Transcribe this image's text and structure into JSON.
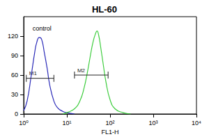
{
  "chart_data": {
    "type": "line",
    "title": "HL-60",
    "x_label": "FL1-H",
    "log": "x",
    "xlim": [
      1,
      10000
    ],
    "xticks": [
      {
        "value": 1,
        "label": "10⁰"
      },
      {
        "value": 10,
        "label": "10¹"
      },
      {
        "value": 100,
        "label": "10²"
      },
      {
        "value": 1000,
        "label": "10³"
      },
      {
        "value": 10000,
        "label": "10⁴"
      }
    ],
    "ylim": [
      0,
      150
    ],
    "yticks": [
      0,
      30,
      60,
      90,
      120
    ],
    "grid": false,
    "series": [
      {
        "color": "#2a2ab8",
        "x": [
          1,
          1.2,
          1.5,
          1.8,
          2,
          2.3,
          2.6,
          3,
          3.5,
          4,
          5,
          6,
          8,
          10,
          15
        ],
        "values": [
          5,
          20,
          60,
          95,
          110,
          118,
          115,
          95,
          70,
          45,
          20,
          10,
          4,
          2,
          0
        ]
      },
      {
        "color": "#3ccc3c",
        "x": [
          8,
          10,
          15,
          20,
          25,
          30,
          35,
          40,
          45,
          50,
          55,
          60,
          70,
          80,
          100,
          130,
          200,
          300
        ],
        "values": [
          0,
          2,
          8,
          20,
          40,
          65,
          90,
          110,
          122,
          128,
          120,
          105,
          75,
          50,
          22,
          8,
          2,
          0
        ]
      }
    ],
    "annotations": [
      {
        "text": "control",
        "x": 1.6,
        "y": 132
      }
    ],
    "markers": [
      {
        "label": "M1",
        "x": [
          1.15,
          5
        ],
        "y": 55,
        "color": "#222222"
      },
      {
        "label": "M2",
        "x": [
          15,
          90
        ],
        "y": 60,
        "color": "#222222"
      }
    ]
  }
}
